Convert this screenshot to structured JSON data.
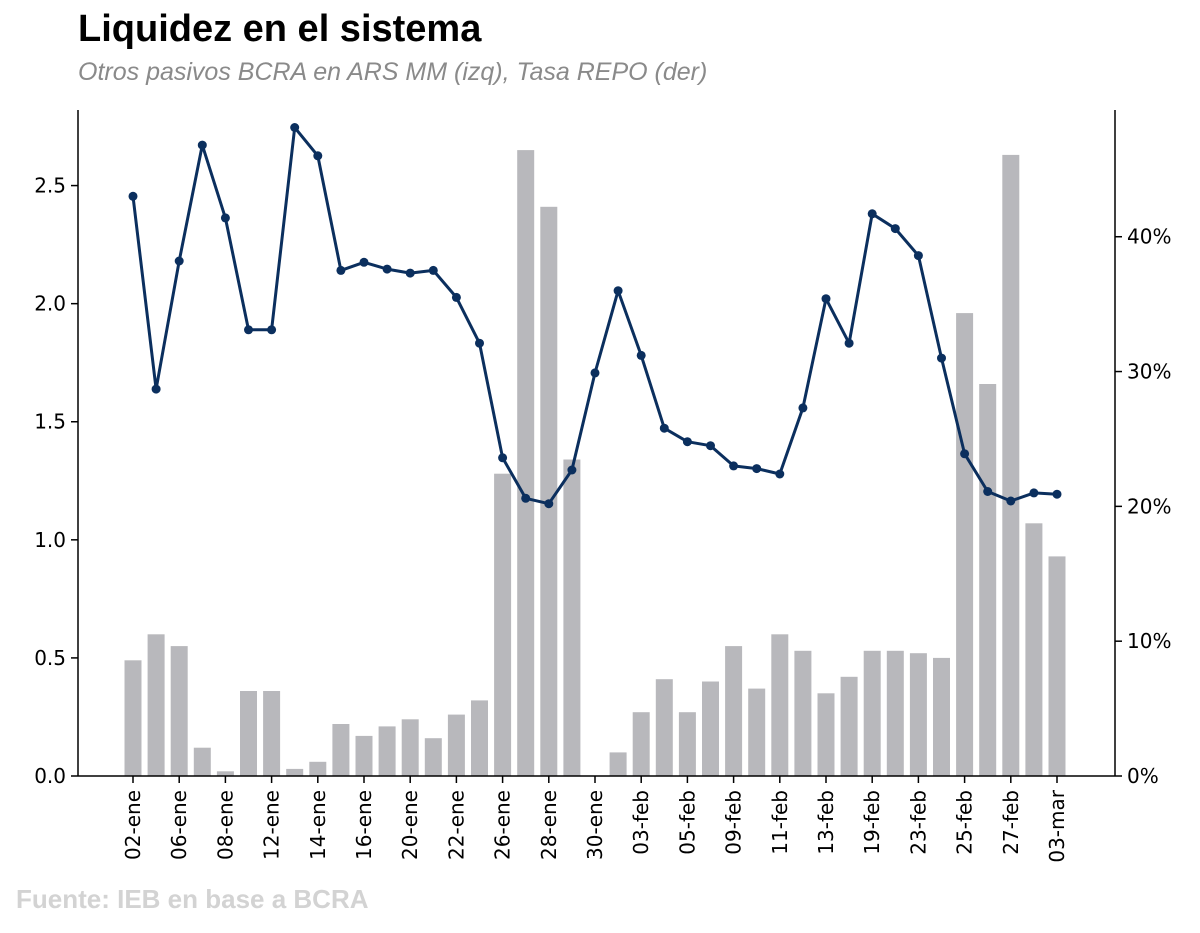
{
  "header": {
    "title": "Liquidez en el sistema",
    "subtitle": "Otros pasivos BCRA en ARS MM (izq), Tasa REPO (der)"
  },
  "footer": {
    "source": "Fuente: IEB en base a BCRA"
  },
  "colors": {
    "bars": "#b8b8bc",
    "line": "#0b2f5e",
    "axis": "#000000"
  },
  "chart_data": {
    "type": "bar+line",
    "categories": [
      "02-ene",
      "03-ene",
      "06-ene",
      "07-ene",
      "08-ene",
      "09-ene",
      "12-ene",
      "13-ene",
      "14-ene",
      "15-ene",
      "16-ene",
      "19-ene",
      "20-ene",
      "21-ene",
      "22-ene",
      "23-ene",
      "26-ene",
      "27-ene",
      "28-ene",
      "29-ene",
      "30-ene",
      "02-feb",
      "03-feb",
      "04-feb",
      "05-feb",
      "06-feb",
      "09-feb",
      "10-feb",
      "11-feb",
      "12-feb",
      "13-feb",
      "18-feb",
      "19-feb",
      "20-feb",
      "23-feb",
      "24-feb",
      "25-feb",
      "26-feb",
      "27-feb",
      "02-mar",
      "03-mar"
    ],
    "tick_labels": [
      "02-ene",
      "06-ene",
      "08-ene",
      "12-ene",
      "14-ene",
      "16-ene",
      "20-ene",
      "22-ene",
      "26-ene",
      "28-ene",
      "30-ene",
      "03-feb",
      "05-feb",
      "09-feb",
      "11-feb",
      "13-feb",
      "19-feb",
      "23-feb",
      "25-feb",
      "27-feb",
      "03-mar"
    ],
    "series": [
      {
        "name": "Otros pasivos BCRA (ARS MM)",
        "type": "bar",
        "axis": "left",
        "values": [
          0.49,
          0.6,
          0.55,
          0.12,
          0.02,
          0.36,
          0.36,
          0.03,
          0.06,
          0.22,
          0.17,
          0.21,
          0.24,
          0.16,
          0.26,
          0.32,
          1.28,
          2.65,
          2.41,
          1.34,
          0,
          0.1,
          0.27,
          0.41,
          0.27,
          0.4,
          0.55,
          0.37,
          0.6,
          0.53,
          0.35,
          0.42,
          0.53,
          0.53,
          0.52,
          0.5,
          1.96,
          1.66,
          2.63,
          1.07,
          0.93
        ]
      },
      {
        "name": "Tasa REPO (%)",
        "type": "line",
        "axis": "right",
        "values": [
          43.0,
          28.7,
          38.2,
          46.8,
          41.4,
          33.1,
          33.1,
          48.1,
          46.0,
          37.5,
          38.1,
          37.6,
          37.3,
          37.5,
          35.5,
          32.1,
          23.6,
          20.6,
          20.2,
          22.7,
          29.9,
          36.0,
          31.2,
          25.8,
          24.8,
          24.5,
          23.0,
          22.8,
          22.4,
          27.3,
          35.4,
          32.1,
          41.7,
          40.6,
          38.6,
          31.0,
          23.9,
          21.1,
          20.4,
          21.0,
          20.9
        ]
      }
    ],
    "y_left": {
      "ylim": [
        0,
        2.82
      ],
      "ticks": [
        0.0,
        0.5,
        1.0,
        1.5,
        2.0,
        2.5
      ],
      "tick_labels": [
        "0.0",
        "0.5",
        "1.0",
        "1.5",
        "2.0",
        "2.5"
      ]
    },
    "y_right": {
      "ylim": [
        0,
        49.4
      ],
      "ticks": [
        0,
        10,
        20,
        30,
        40
      ],
      "tick_labels": [
        "0%",
        "10%",
        "20%",
        "30%",
        "40%"
      ]
    }
  }
}
